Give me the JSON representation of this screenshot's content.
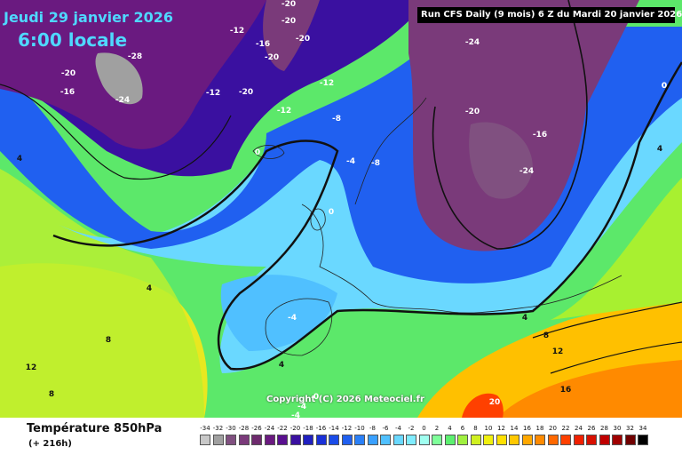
{
  "header": {
    "date": "Jeudi 29 janvier 2026",
    "time": "6:00 locale",
    "run": "Run CFS Daily (9 mois) 6 Z du Mardi 20 janvier 2026"
  },
  "copyright": "Copyright (C) 2026 Meteociel.fr",
  "footer": {
    "title": "Température 850hPa",
    "subtitle": "(+ 216h)"
  },
  "map": {
    "isotherm_labels": [
      {
        "text": "-20"
      },
      {
        "text": "-12"
      },
      {
        "text": "-16"
      },
      {
        "text": "-20"
      },
      {
        "text": "-20"
      },
      {
        "text": "-20"
      },
      {
        "text": "-28"
      },
      {
        "text": "-20"
      },
      {
        "text": "-16"
      },
      {
        "text": "-24"
      },
      {
        "text": "-12"
      },
      {
        "text": "-20"
      },
      {
        "text": "-12"
      },
      {
        "text": "-12"
      },
      {
        "text": "-8"
      },
      {
        "text": "-24"
      },
      {
        "text": "-4"
      },
      {
        "text": "0"
      },
      {
        "text": "-20"
      },
      {
        "text": "-16"
      },
      {
        "text": "-24"
      },
      {
        "text": "0"
      },
      {
        "text": "4"
      },
      {
        "text": "0"
      },
      {
        "text": "-4"
      },
      {
        "text": "-8"
      },
      {
        "text": "0"
      },
      {
        "text": "4"
      },
      {
        "text": "4"
      },
      {
        "text": "8"
      },
      {
        "text": "12"
      },
      {
        "text": "8"
      },
      {
        "text": "-4"
      },
      {
        "text": "4"
      },
      {
        "text": "8"
      },
      {
        "text": "4"
      },
      {
        "text": "12"
      },
      {
        "text": "16"
      },
      {
        "text": "20"
      },
      {
        "text": "0"
      },
      {
        "text": "-4"
      }
    ]
  },
  "legend": {
    "labels": [
      "-34",
      "-32",
      "-30",
      "-28",
      "-26",
      "-24",
      "-22",
      "-20",
      "-18",
      "-16",
      "-14",
      "-12",
      "-10",
      "-8",
      "-6",
      "-4",
      "-2",
      "0",
      "2",
      "4",
      "6",
      "8",
      "10",
      "12",
      "14",
      "16",
      "18",
      "20",
      "22",
      "24",
      "26",
      "28",
      "30",
      "32",
      "34"
    ],
    "colors": [
      "#c8c8c8",
      "#a0a0a0",
      "#805080",
      "#7a3a7a",
      "#6e2a6e",
      "#6a1a80",
      "#5a1090",
      "#3a10a0",
      "#2020c0",
      "#1a30d8",
      "#1a4ce8",
      "#2060f0",
      "#2a80f8",
      "#3aa0ff",
      "#50c0ff",
      "#6ad8ff",
      "#80ecff",
      "#a0fff0",
      "#7fff9a",
      "#5cf070",
      "#a0f040",
      "#d0f020",
      "#f0f010",
      "#ffe000",
      "#ffc800",
      "#ffa800",
      "#ff8a00",
      "#ff6800",
      "#ff4000",
      "#f02000",
      "#d81000",
      "#c00000",
      "#a00000",
      "#700000",
      "#000000"
    ]
  }
}
